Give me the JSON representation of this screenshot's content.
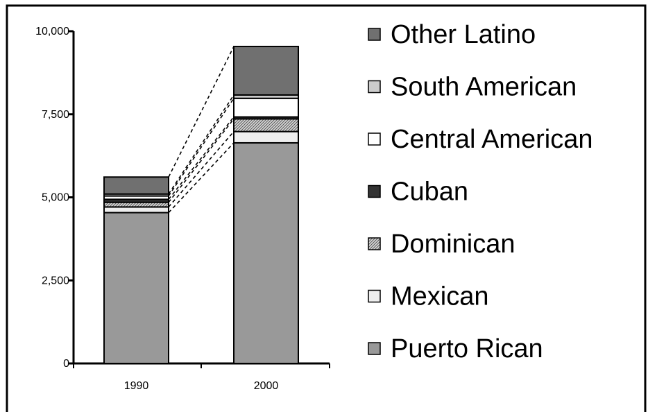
{
  "chart_data": {
    "type": "bar",
    "stacked": true,
    "categories": [
      "1990",
      "2000"
    ],
    "ylim": [
      0,
      10000
    ],
    "yticks": [
      0,
      2500,
      5000,
      7500,
      10000
    ],
    "ytick_labels": [
      "0",
      "2,500",
      "5,000",
      "7,500",
      "10,000"
    ],
    "legend_position": "right",
    "series_connectors": "dashed",
    "series": [
      {
        "name": "Puerto Rican",
        "values": [
          4540,
          6640
        ],
        "color": "#999999",
        "pattern": "solid"
      },
      {
        "name": "Mexican",
        "values": [
          170,
          340
        ],
        "color": "#eeeeee",
        "pattern": "solid"
      },
      {
        "name": "Dominican",
        "values": [
          140,
          380
        ],
        "color": "#bbbbbb",
        "pattern": "hatch"
      },
      {
        "name": "Cuban",
        "values": [
          90,
          60
        ],
        "color": "#333333",
        "pattern": "solid"
      },
      {
        "name": "Central American",
        "values": [
          100,
          560
        ],
        "color": "#ffffff",
        "pattern": "solid"
      },
      {
        "name": "South American",
        "values": [
          60,
          100
        ],
        "color": "#cccccc",
        "pattern": "solid"
      },
      {
        "name": "Other Latino",
        "values": [
          510,
          1460
        ],
        "color": "#707070",
        "pattern": "solid"
      }
    ],
    "legend_order": [
      "Other Latino",
      "South American",
      "Central American",
      "Cuban",
      "Dominican",
      "Mexican",
      "Puerto Rican"
    ]
  }
}
